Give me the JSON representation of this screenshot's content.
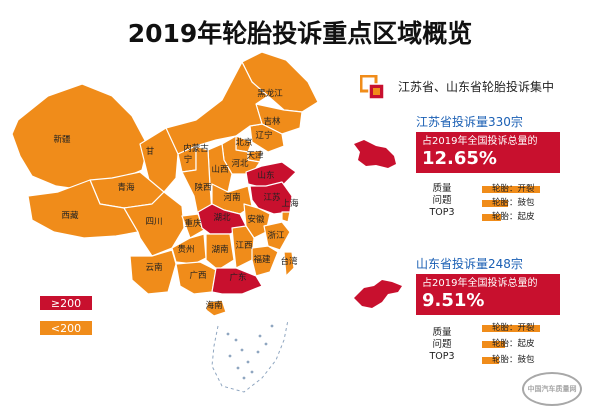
{
  "title": "2019年轮胎投诉重点区域概览",
  "colors": {
    "high": "#c8102e",
    "low": "#f08c1a",
    "border": "#ffffff",
    "label": "#222222"
  },
  "legend": [
    {
      "label": "≥200",
      "category": "high"
    },
    {
      "label": "<200",
      "category": "low"
    }
  ],
  "note": {
    "icon": "stacked-squares-icon",
    "text": "江苏省、山东省轮胎投诉集中"
  },
  "provinces": [
    {
      "name": "黑龙江",
      "category": "low"
    },
    {
      "name": "吉林",
      "category": "low"
    },
    {
      "name": "辽宁",
      "category": "low"
    },
    {
      "name": "内蒙古",
      "category": "low"
    },
    {
      "name": "北京",
      "category": "low"
    },
    {
      "name": "天津",
      "category": "low"
    },
    {
      "name": "河北",
      "category": "low"
    },
    {
      "name": "山西",
      "category": "low"
    },
    {
      "name": "山东",
      "category": "high"
    },
    {
      "name": "新疆",
      "category": "low"
    },
    {
      "name": "甘",
      "category": "low"
    },
    {
      "name": "宁",
      "category": "low"
    },
    {
      "name": "陕西",
      "category": "low"
    },
    {
      "name": "河南",
      "category": "low"
    },
    {
      "name": "江苏",
      "category": "high"
    },
    {
      "name": "安徽",
      "category": "low"
    },
    {
      "name": "上海",
      "category": "low"
    },
    {
      "name": "青海",
      "category": "low"
    },
    {
      "name": "西藏",
      "category": "low"
    },
    {
      "name": "四川",
      "category": "low"
    },
    {
      "name": "重庆",
      "category": "low"
    },
    {
      "name": "湖北",
      "category": "high"
    },
    {
      "name": "浙江",
      "category": "low"
    },
    {
      "name": "湖南",
      "category": "low"
    },
    {
      "name": "江西",
      "category": "low"
    },
    {
      "name": "贵州",
      "category": "low"
    },
    {
      "name": "福建",
      "category": "low"
    },
    {
      "name": "云南",
      "category": "low"
    },
    {
      "name": "广西",
      "category": "low"
    },
    {
      "name": "广东",
      "category": "high"
    },
    {
      "name": "海南",
      "category": "low"
    },
    {
      "name": "台湾",
      "category": "low"
    }
  ],
  "panels": [
    {
      "header": "江苏省投诉量330宗",
      "share_label": "占2019年全国投诉总量的",
      "share_value": "12.65%",
      "issues_label": [
        "质量",
        "问题",
        "TOP3"
      ],
      "issues": [
        {
          "label": "轮胎：开裂",
          "share": 1.0
        },
        {
          "label": "轮胎：鼓包",
          "share": 0.45
        },
        {
          "label": "轮胎：起皮",
          "share": 0.32
        }
      ]
    },
    {
      "header": "山东省投诉量248宗",
      "share_label": "占2019年全国投诉总量的",
      "share_value": "9.51%",
      "issues_label": [
        "质量",
        "问题",
        "TOP3"
      ],
      "issues": [
        {
          "label": "轮胎：开裂",
          "share": 1.0
        },
        {
          "label": "轮胎：起皮",
          "share": 0.4
        },
        {
          "label": "轮胎：鼓包",
          "share": 0.3
        }
      ]
    }
  ],
  "watermark": "中国汽车质量网"
}
